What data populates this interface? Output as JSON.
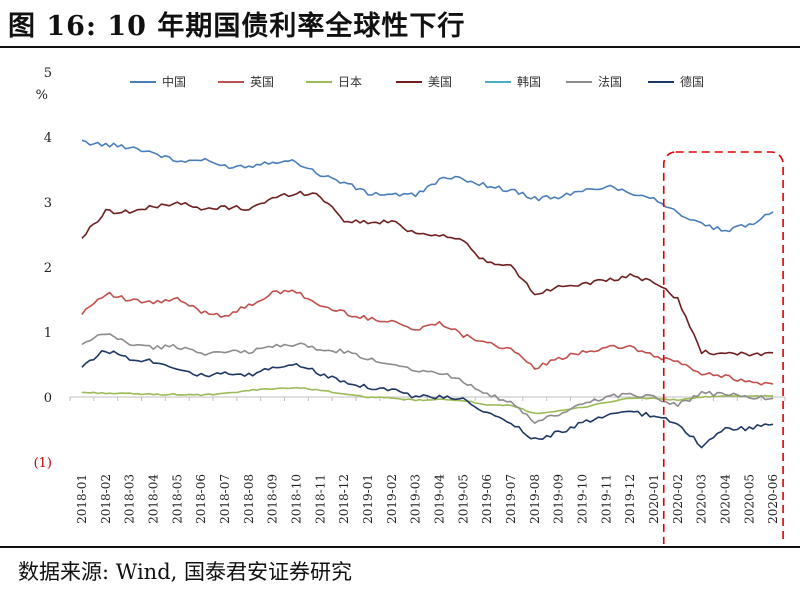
{
  "title": "图 16:  10 年期国债利率全球性下行",
  "source": "数据来源:  Wind,  国泰君安证券研究",
  "chart_data": {
    "type": "line",
    "ylabel_unit": "%",
    "ylim": [
      -1,
      5
    ],
    "yticks": [
      5,
      4,
      3,
      2,
      1,
      0,
      -1
    ],
    "ytick_labels": [
      "5",
      "4",
      "3",
      "2",
      "1",
      "0",
      "(1)"
    ],
    "x_tick_labels": [
      "2018-01",
      "2018-02",
      "2018-03",
      "2018-04",
      "2018-05",
      "2018-06",
      "2018-07",
      "2018-08",
      "2018-09",
      "2018-10",
      "2018-11",
      "2018-12",
      "2019-01",
      "2019-02",
      "2019-03",
      "2019-04",
      "2019-05",
      "2019-06",
      "2019-07",
      "2019-08",
      "2019-09",
      "2019-10",
      "2019-11",
      "2019-12",
      "2020-01",
      "2020-02",
      "2020-03",
      "2020-04",
      "2020-05",
      "2020-06"
    ],
    "legend_position": "top",
    "highlight_box": {
      "x_from": "2020-02",
      "x_to": "2020-06",
      "style": "red-dashed"
    },
    "series": [
      {
        "name": "中国",
        "color": "#4a7ebb",
        "values": [
          3.92,
          3.88,
          3.85,
          3.76,
          3.62,
          3.65,
          3.55,
          3.55,
          3.63,
          3.62,
          3.42,
          3.3,
          3.13,
          3.12,
          3.1,
          3.35,
          3.36,
          3.25,
          3.18,
          3.05,
          3.08,
          3.16,
          3.25,
          3.15,
          3.06,
          2.83,
          2.65,
          2.55,
          2.65,
          2.85
        ]
      },
      {
        "name": "英国",
        "color": "#c0504d",
        "values": [
          1.3,
          1.6,
          1.48,
          1.45,
          1.5,
          1.32,
          1.25,
          1.4,
          1.6,
          1.62,
          1.4,
          1.3,
          1.2,
          1.18,
          1.02,
          1.16,
          0.95,
          0.85,
          0.72,
          0.45,
          0.58,
          0.7,
          0.75,
          0.78,
          0.62,
          0.55,
          0.35,
          0.33,
          0.22,
          0.2
        ]
      },
      {
        "name": "日本",
        "color": "#9bbb59",
        "values": [
          0.07,
          0.06,
          0.05,
          0.04,
          0.04,
          0.03,
          0.05,
          0.1,
          0.13,
          0.14,
          0.11,
          0.04,
          0.0,
          -0.02,
          -0.05,
          -0.04,
          -0.05,
          -0.13,
          -0.13,
          -0.25,
          -0.22,
          -0.16,
          -0.08,
          -0.02,
          -0.02,
          -0.05,
          0.0,
          0.01,
          0.01,
          0.02
        ]
      },
      {
        "name": "美国",
        "color": "#6e1f1f",
        "values": [
          2.45,
          2.86,
          2.85,
          2.92,
          3.0,
          2.88,
          2.92,
          2.9,
          3.05,
          3.15,
          3.1,
          2.72,
          2.68,
          2.7,
          2.52,
          2.5,
          2.4,
          2.05,
          2.02,
          1.58,
          1.7,
          1.75,
          1.78,
          1.86,
          1.78,
          1.5,
          0.7,
          0.65,
          0.66,
          0.68
        ]
      },
      {
        "name": "韩国",
        "color": "#4bacc6",
        "values": []
      },
      {
        "name": "法国",
        "color": "#8c8c8c",
        "values": [
          0.8,
          0.98,
          0.82,
          0.76,
          0.78,
          0.68,
          0.68,
          0.7,
          0.78,
          0.82,
          0.72,
          0.7,
          0.58,
          0.52,
          0.42,
          0.37,
          0.25,
          0.05,
          -0.1,
          -0.38,
          -0.28,
          -0.1,
          0.0,
          0.05,
          0.0,
          -0.12,
          0.05,
          0.05,
          0.0,
          -0.02
        ]
      },
      {
        "name": "德国",
        "color": "#1f3864",
        "values": [
          0.48,
          0.72,
          0.6,
          0.55,
          0.45,
          0.33,
          0.35,
          0.33,
          0.45,
          0.52,
          0.35,
          0.25,
          0.15,
          0.12,
          0.0,
          0.0,
          -0.05,
          -0.25,
          -0.4,
          -0.65,
          -0.55,
          -0.4,
          -0.3,
          -0.22,
          -0.3,
          -0.4,
          -0.75,
          -0.5,
          -0.48,
          -0.42
        ]
      }
    ]
  }
}
